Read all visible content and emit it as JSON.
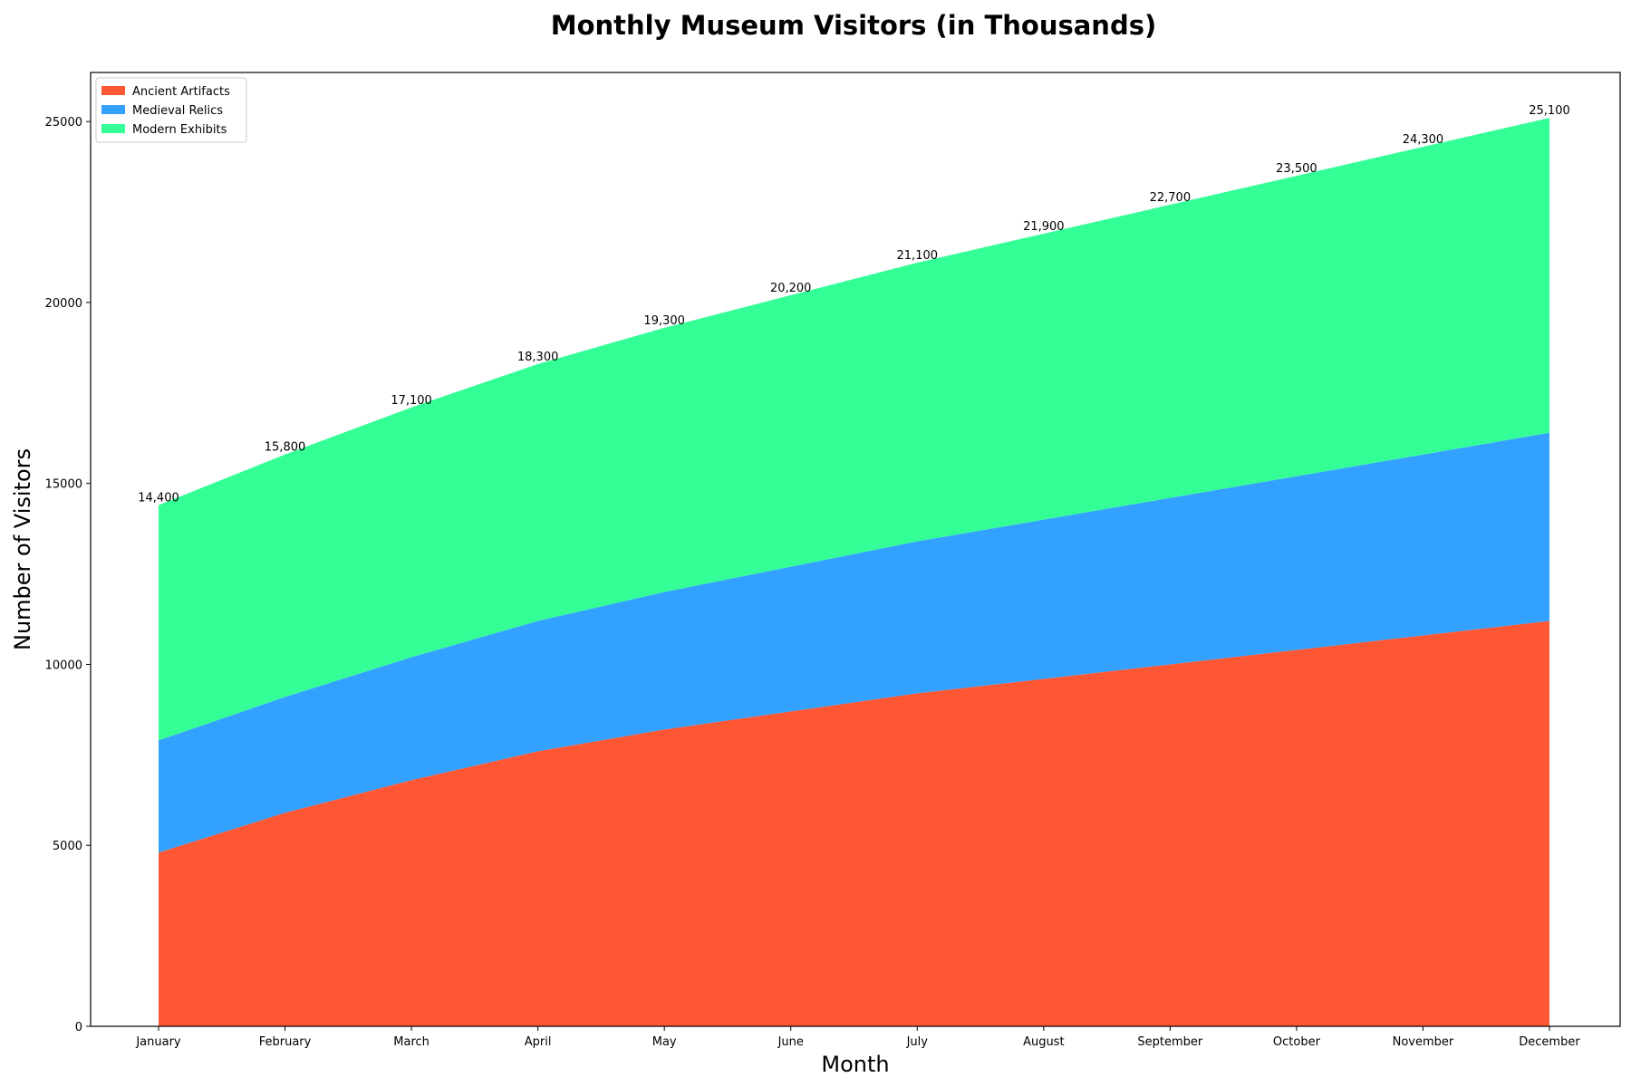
{
  "chart_data": {
    "type": "area",
    "stacked": true,
    "title": "Monthly Museum Visitors (in Thousands)",
    "xlabel": "Month",
    "ylabel": "Number of Visitors",
    "categories": [
      "January",
      "February",
      "March",
      "April",
      "May",
      "June",
      "July",
      "August",
      "September",
      "October",
      "November",
      "December"
    ],
    "series": [
      {
        "name": "Ancient Artifacts",
        "color": "#ff5733",
        "values": [
          4800,
          5900,
          6800,
          7600,
          8200,
          8700,
          9200,
          9600,
          10000,
          10400,
          10800,
          11200
        ]
      },
      {
        "name": "Medieval Relics",
        "color": "#33a1ff",
        "values": [
          3100,
          3200,
          3400,
          3600,
          3800,
          4000,
          4200,
          4400,
          4600,
          4800,
          5000,
          5200
        ]
      },
      {
        "name": "Modern Exhibits",
        "color": "#33ff96",
        "values": [
          6500,
          6700,
          6900,
          7100,
          7300,
          7500,
          7700,
          7900,
          8100,
          8300,
          8500,
          8700
        ]
      }
    ],
    "totals": [
      14400,
      15800,
      17100,
      18300,
      19300,
      20200,
      21100,
      21900,
      22700,
      23500,
      24300,
      25100
    ],
    "total_labels": [
      "14,400",
      "15,800",
      "17,100",
      "18,300",
      "19,300",
      "20,200",
      "21,100",
      "21,900",
      "22,700",
      "23,500",
      "24,300",
      "25,100"
    ],
    "yticks": [
      0,
      5000,
      10000,
      15000,
      20000,
      25000
    ],
    "ylim": [
      0,
      26355
    ],
    "legend_position": "upper-left",
    "grid": false
  }
}
